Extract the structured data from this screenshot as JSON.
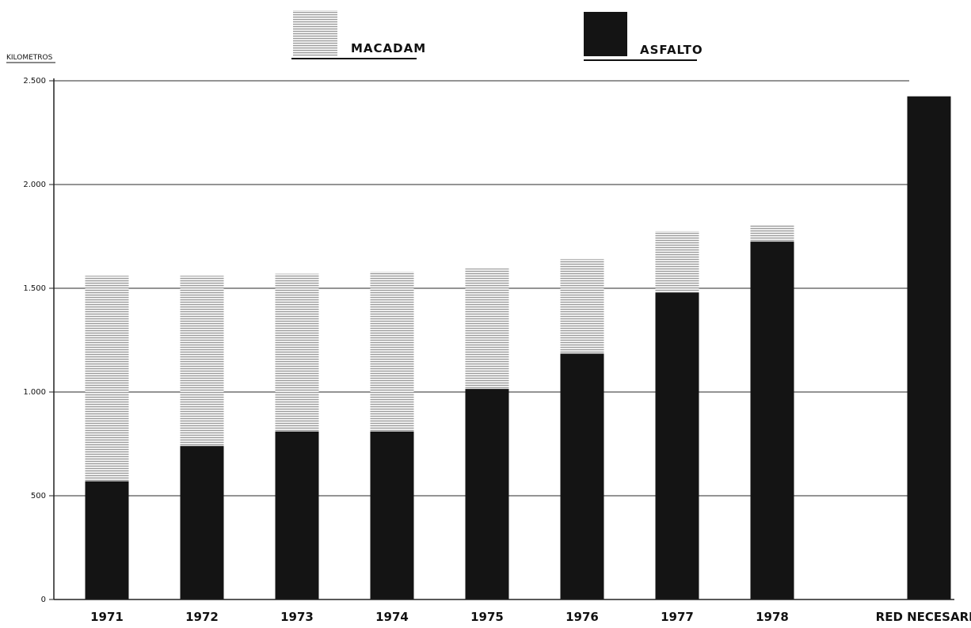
{
  "chart_data": {
    "type": "bar",
    "stacked": true,
    "ylabel": "KILOMETROS",
    "ylim": [
      0,
      2500
    ],
    "y_ticks": [
      0,
      500,
      1000,
      1500,
      2000,
      2500
    ],
    "y_tick_labels": [
      "0",
      "500",
      "1.000",
      "1.500",
      "2.000",
      "2.500"
    ],
    "grid": true,
    "legend_position": "top",
    "categories": [
      "1971",
      "1972",
      "1973",
      "1974",
      "1975",
      "1976",
      "1977",
      "1978",
      "RED NECESARIA"
    ],
    "series": [
      {
        "name": "ASFALTO",
        "color": "#141414",
        "values": [
          570,
          740,
          810,
          810,
          1015,
          1185,
          1480,
          1725,
          2425
        ]
      },
      {
        "name": "MACADAM",
        "color": "#c8c8c8",
        "pattern": "horizontal-lines",
        "values": [
          990,
          820,
          760,
          770,
          580,
          455,
          295,
          80,
          0
        ]
      }
    ]
  }
}
